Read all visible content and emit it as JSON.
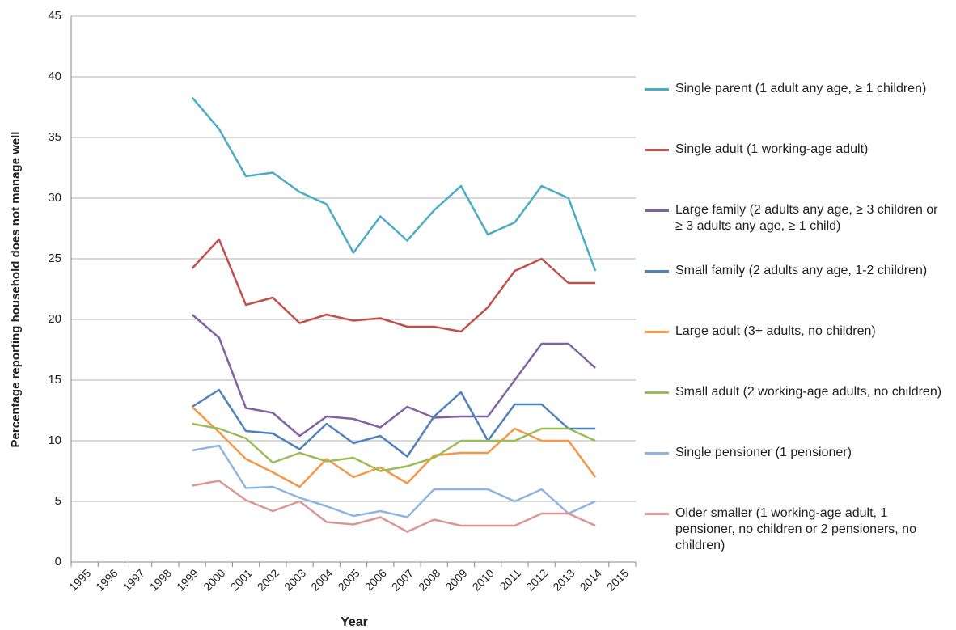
{
  "chart_data": {
    "type": "line",
    "x_label": "Year",
    "y_label": "Percentage reporting household does not manage well",
    "categories": [
      "1995",
      "1996",
      "1997",
      "1998",
      "1999",
      "2000",
      "2001",
      "2002",
      "2003",
      "2004",
      "2005",
      "2006",
      "2007",
      "2008",
      "2009",
      "2010",
      "2011",
      "2012",
      "2013",
      "2014",
      "2015"
    ],
    "series": [
      {
        "name": "Single parent (1 adult any age, ≥ 1 children)",
        "color": "#4bacc6",
        "values": [
          null,
          null,
          null,
          null,
          38.3,
          35.7,
          31.8,
          32.1,
          30.5,
          29.5,
          25.5,
          28.5,
          26.5,
          29,
          31,
          27,
          28,
          31,
          30,
          24,
          null
        ]
      },
      {
        "name": "Single adult (1 working-age adult)",
        "color": "#c0504d",
        "values": [
          null,
          null,
          null,
          null,
          24.2,
          26.6,
          21.2,
          21.8,
          19.7,
          20.4,
          19.9,
          20.1,
          19.4,
          19.4,
          19,
          21,
          24,
          25,
          23,
          23,
          null
        ]
      },
      {
        "name": "Large family (2 adults any age, ≥ 3 children or  ≥ 3 adults any age,  ≥ 1 child)",
        "color": "#8064a2",
        "values": [
          null,
          null,
          null,
          null,
          20.4,
          18.5,
          12.7,
          12.3,
          10.4,
          12,
          11.8,
          11.1,
          12.8,
          11.9,
          12,
          12,
          15,
          18,
          18,
          16,
          null
        ]
      },
      {
        "name": "Small family (2 adults any age, 1-2 children)",
        "color": "#4f81bd",
        "values": [
          null,
          null,
          null,
          null,
          12.8,
          14.2,
          10.8,
          10.6,
          9.3,
          11.4,
          9.8,
          10.4,
          8.7,
          12,
          14,
          10,
          13,
          13,
          11,
          11,
          null
        ]
      },
      {
        "name": "Large adult (3+ adults, no children)",
        "color": "#f79646",
        "values": [
          null,
          null,
          null,
          null,
          12.8,
          10.7,
          8.5,
          7.4,
          6.2,
          8.5,
          7,
          7.8,
          6.5,
          8.8,
          9,
          9,
          11,
          10,
          10,
          7,
          null
        ]
      },
      {
        "name": "Small adult (2 working-age adults, no children)",
        "color": "#9bbb59",
        "values": [
          null,
          null,
          null,
          null,
          11.4,
          11,
          10.2,
          8.2,
          9,
          8.3,
          8.6,
          7.5,
          7.9,
          8.6,
          10,
          10,
          10,
          11,
          11,
          10,
          null
        ]
      },
      {
        "name": "Single pensioner (1 pensioner)",
        "color": "#8eb4e3",
        "values": [
          null,
          null,
          null,
          null,
          9.2,
          9.6,
          6.1,
          6.2,
          5.3,
          4.6,
          3.8,
          4.2,
          3.7,
          6,
          6,
          6,
          5,
          6,
          4,
          5,
          null
        ]
      },
      {
        "name": "Older smaller (1 working-age adult, 1 pensioner, no children or 2 pensioners, no children)",
        "color": "#d99694",
        "values": [
          null,
          null,
          null,
          null,
          6.3,
          6.7,
          5.1,
          4.2,
          5,
          3.3,
          3.1,
          3.7,
          2.5,
          3.5,
          3,
          3,
          3,
          4,
          4,
          3,
          null
        ]
      }
    ],
    "ylim": [
      0,
      45
    ],
    "yticks": [
      0,
      5,
      10,
      15,
      20,
      25,
      30,
      35,
      40,
      45
    ],
    "grid": true,
    "legend": "right"
  }
}
